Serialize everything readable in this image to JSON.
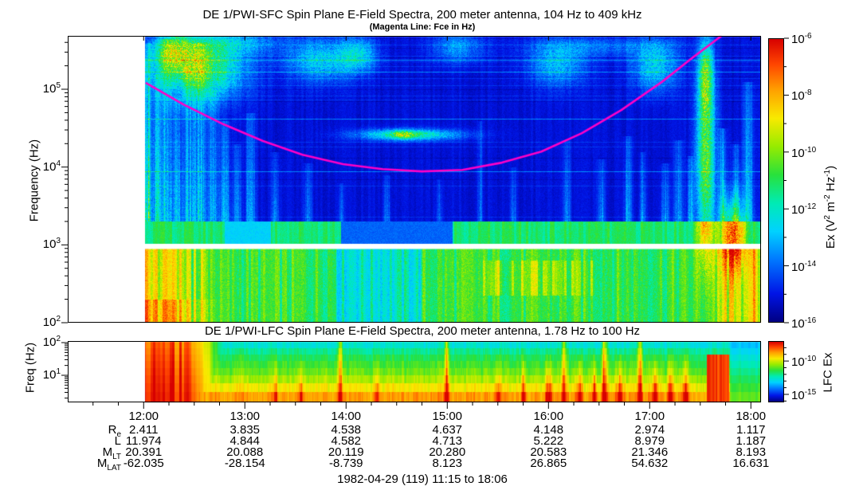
{
  "caption": "1982-04-29 (119) 11:15 to 18:06",
  "colors": {
    "magenta_line": "#ff00c8",
    "frame": "#000000",
    "white_gap": "#ffffff"
  },
  "sfc": {
    "title": "DE 1/PWI-SFC  Spin Plane E-Field Spectra, 200 meter antenna, 104 Hz to 409 kHz",
    "subtitle": "(Magenta Line: Fce in Hz)",
    "ylabel": "Frequency (Hz)",
    "y_tick_exponents": [
      5,
      4,
      3,
      2
    ],
    "colorbar": {
      "label_text": "Ex (V2 m-2 Hz-1)",
      "label_parts": [
        [
          "t",
          "Ex (V"
        ],
        [
          "s",
          "2"
        ],
        [
          "t",
          " m"
        ],
        [
          "s",
          "-2"
        ],
        [
          "t",
          " Hz"
        ],
        [
          "s",
          "-1"
        ],
        [
          "t",
          ")"
        ]
      ],
      "tick_exponents": [
        -6,
        -8,
        -10,
        -12,
        -14,
        -16
      ]
    }
  },
  "lfc": {
    "title": "DE 1/PWI-LFC  Spin Plane E-Field Spectra, 200 meter antenna, 1.78 Hz to 100 Hz",
    "ylabel": "Freq (Hz)",
    "y_tick_exponents": [
      2,
      1
    ],
    "colorbar": {
      "label": "LFC Ex",
      "tick_exponents": [
        -10,
        -15
      ]
    }
  },
  "time_axis": {
    "start": "11:15",
    "end": "18:06",
    "hours": [
      "12:00",
      "13:00",
      "14:00",
      "15:00",
      "16:00",
      "17:00",
      "18:00"
    ]
  },
  "ephemeris": {
    "rows": [
      {
        "label": "R",
        "sub": "e",
        "values": [
          "2.411",
          "3.835",
          "4.538",
          "4.637",
          "4.148",
          "2.974",
          "1.117"
        ]
      },
      {
        "label": "L",
        "sub": "",
        "values": [
          "11.974",
          "4.844",
          "4.582",
          "4.713",
          "5.222",
          "8.979",
          "1.187"
        ]
      },
      {
        "label": "M",
        "sub": "LT",
        "values": [
          "20.391",
          "20.088",
          "20.119",
          "20.280",
          "20.583",
          "21.346",
          "8.193"
        ]
      },
      {
        "label": "M",
        "sub": "LAT",
        "values": [
          "-62.035",
          "-28.154",
          "-8.739",
          "8.123",
          "26.865",
          "54.632",
          "16.631"
        ]
      }
    ]
  },
  "chart_data": [
    {
      "type": "heatmap",
      "id": "sfc-spectrogram",
      "title": "DE 1/PWI-SFC  Spin Plane E-Field Spectra, 200 meter antenna, 104 Hz to 409 kHz",
      "x_range": [
        "11:15",
        "18:06"
      ],
      "x_scale": "time",
      "y_scale": "log",
      "y_range_hz": [
        100,
        409000
      ],
      "ylabel": "Frequency (Hz)",
      "z_label": "Ex (V^2 m^-2 Hz^-1)",
      "z_range": [
        1e-16,
        1e-06
      ],
      "no_data_before": "12:00",
      "white_gap_hz": [
        900,
        1030
      ],
      "fce_points": [
        [
          12.02,
          121000
        ],
        [
          12.39,
          64000
        ],
        [
          12.79,
          35400
        ],
        [
          13.18,
          21600
        ],
        [
          13.57,
          14400
        ],
        [
          13.97,
          10900
        ],
        [
          14.36,
          9400
        ],
        [
          14.75,
          8800
        ],
        [
          15.15,
          9200
        ],
        [
          15.54,
          11400
        ],
        [
          15.93,
          15800
        ],
        [
          16.33,
          27300
        ],
        [
          16.72,
          54000
        ],
        [
          17.12,
          124000
        ],
        [
          17.43,
          258000
        ],
        [
          17.71,
          486000
        ]
      ],
      "render_features": {
        "streaks": [
          [
            12.02,
            0.03,
            5.4,
            0.45
          ],
          [
            12.05,
            0.05,
            5.6,
            0.5
          ],
          [
            12.13,
            0.04,
            5.2,
            0.45
          ],
          [
            12.22,
            0.06,
            5.65,
            0.5
          ],
          [
            12.33,
            0.05,
            4.9,
            0.4
          ],
          [
            12.44,
            0.05,
            5.3,
            0.45
          ],
          [
            12.55,
            0.06,
            5.6,
            0.5
          ],
          [
            12.68,
            0.05,
            5.0,
            0.4
          ],
          [
            12.8,
            0.05,
            4.6,
            0.45
          ],
          [
            12.92,
            0.04,
            4.3,
            0.35
          ],
          [
            13.05,
            0.05,
            4.7,
            0.4
          ],
          [
            13.3,
            0.04,
            4.2,
            0.3
          ],
          [
            13.62,
            0.04,
            4.05,
            0.3
          ],
          [
            13.95,
            0.03,
            3.8,
            0.25
          ],
          [
            14.4,
            0.035,
            3.9,
            0.3
          ],
          [
            14.92,
            0.03,
            3.85,
            0.25
          ],
          [
            15.32,
            0.025,
            4.6,
            0.3
          ],
          [
            15.65,
            0.03,
            4.0,
            0.28
          ],
          [
            16.18,
            0.035,
            4.35,
            0.3
          ],
          [
            16.52,
            0.035,
            4.1,
            0.32
          ],
          [
            16.78,
            0.04,
            4.4,
            0.35
          ],
          [
            16.93,
            0.03,
            4.2,
            0.3
          ],
          [
            17.15,
            0.04,
            4.05,
            0.38
          ],
          [
            17.28,
            0.04,
            4.35,
            0.4
          ],
          [
            17.4,
            0.035,
            4.15,
            0.38
          ],
          [
            17.72,
            0.04,
            4.5,
            0.45
          ],
          [
            17.85,
            0.04,
            4.3,
            0.4
          ],
          [
            17.97,
            0.05,
            5.1,
            0.42
          ]
        ],
        "blobs": [
          [
            12.55,
            5.28,
            0.42,
            0.4,
            0.55
          ],
          [
            12.3,
            5.5,
            0.2,
            0.25,
            0.4
          ],
          [
            13.75,
            5.38,
            0.33,
            0.28,
            0.3
          ],
          [
            14.12,
            5.45,
            0.18,
            0.22,
            0.28
          ],
          [
            14.62,
            4.42,
            0.5,
            0.07,
            0.45
          ],
          [
            14.56,
            4.42,
            0.12,
            0.05,
            0.3
          ],
          [
            16.08,
            5.32,
            0.28,
            0.28,
            0.25
          ],
          [
            17.05,
            5.3,
            0.22,
            0.33,
            0.3
          ],
          [
            17.55,
            4.1,
            0.09,
            1.2,
            0.6
          ],
          [
            17.55,
            5.15,
            0.07,
            0.45,
            0.4
          ],
          [
            17.82,
            3.15,
            0.12,
            0.45,
            0.5
          ],
          [
            15.1,
            5.55,
            0.25,
            0.2,
            0.22
          ],
          [
            12.9,
            5.6,
            0.5,
            0.15,
            0.2
          ],
          [
            16.5,
            5.55,
            0.7,
            0.12,
            0.15
          ]
        ],
        "lower_band": {
          "base": 0.52,
          "warm_until": 12.8,
          "cool_t": [
            13.9,
            14.75
          ],
          "yellow_patch": [
            15.35,
            16.45,
            2.35,
            2.8
          ],
          "warm_right_after": 17.55
        },
        "mid_strip_blue": [
          13.95,
          15.05
        ],
        "mid_strip_blue2": [
          12.8,
          13.25
        ]
      }
    },
    {
      "type": "heatmap",
      "id": "lfc-spectrogram",
      "title": "DE 1/PWI-LFC  Spin Plane E-Field Spectra, 200 meter antenna, 1.78 Hz to 100 Hz",
      "x_range": [
        "11:15",
        "18:06"
      ],
      "y_scale": "log",
      "y_range_hz": [
        1.78,
        100
      ],
      "ylabel": "Freq (Hz)",
      "z_label": "LFC Ex",
      "z_range": [
        1e-16,
        1e-07
      ],
      "no_data_before": "12:00",
      "render_features": {
        "row_base": [
          0.38,
          0.45,
          0.5,
          0.54,
          0.58,
          0.64,
          0.72,
          0.82
        ],
        "warm_until": 12.45,
        "warm_fade_until": 13.1,
        "streaks": [
          [
            13.3,
            0.02,
            0.2,
            0
          ],
          [
            13.55,
            0.02,
            0.22,
            0
          ],
          [
            13.94,
            0.02,
            0.38,
            1
          ],
          [
            14.3,
            0.02,
            0.18,
            0
          ],
          [
            14.99,
            0.02,
            0.33,
            1
          ],
          [
            15.5,
            0.025,
            0.2,
            0
          ],
          [
            15.75,
            0.02,
            0.25,
            0
          ],
          [
            16.0,
            0.03,
            0.3,
            0
          ],
          [
            16.15,
            0.02,
            0.32,
            1
          ],
          [
            16.3,
            0.03,
            0.28,
            0
          ],
          [
            16.45,
            0.02,
            0.3,
            0
          ],
          [
            16.55,
            0.025,
            0.36,
            1
          ],
          [
            16.7,
            0.03,
            0.3,
            0
          ],
          [
            16.9,
            0.025,
            0.34,
            1
          ],
          [
            17.05,
            0.03,
            0.3,
            0
          ],
          [
            17.2,
            0.025,
            0.3,
            0
          ],
          [
            17.35,
            0.03,
            0.28,
            0
          ]
        ],
        "red_blob_t": [
          17.56,
          17.78
        ],
        "cool_tail_after": 17.79
      }
    }
  ]
}
